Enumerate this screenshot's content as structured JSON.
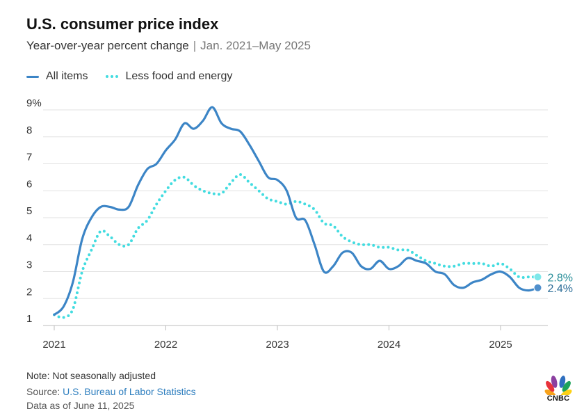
{
  "header": {
    "title": "U.S. consumer price index",
    "subtitle": "Year-over-year percent change",
    "subtitle_separator": "|",
    "subtitle_range": "Jan. 2021–May 2025"
  },
  "legend": {
    "items": [
      {
        "label": "All items",
        "style": "solid"
      },
      {
        "label": "Less food and energy",
        "style": "dotted"
      }
    ]
  },
  "footer": {
    "note": "Note: Not seasonally adjusted",
    "source_prefix": "Source: ",
    "source_link": "U.S. Bureau of Labor Statistics",
    "date": "Data as of June 11, 2025"
  },
  "logo": {
    "text": "CNBC",
    "icon": "peacock-icon"
  },
  "colors": {
    "all_items": "#3c85c6",
    "core": "#43dce0",
    "end_label_all": "#2f6f99",
    "end_label_core": "#2a8f9a",
    "grid": "#e2e2e2"
  },
  "chart_data": {
    "type": "line",
    "x_start": "2021-01",
    "x_frequency": "monthly",
    "ylim": [
      1,
      9
    ],
    "yticks": [
      1,
      2,
      3,
      4,
      5,
      6,
      7,
      8,
      9
    ],
    "ytick_labels": [
      "1",
      "2",
      "3",
      "4",
      "5",
      "6",
      "7",
      "8",
      "9%"
    ],
    "xticks": [
      {
        "label": "2021",
        "x": "2021-01"
      },
      {
        "label": "2022",
        "x": "2022-01"
      },
      {
        "label": "2023",
        "x": "2023-01"
      },
      {
        "label": "2024",
        "x": "2024-01"
      },
      {
        "label": "2025",
        "x": "2025-01"
      }
    ],
    "grid": true,
    "legend_position": "top-left",
    "series": [
      {
        "name": "All items",
        "style": "solid",
        "end_label": "2.4%",
        "values": [
          1.4,
          1.7,
          2.6,
          4.2,
          5.0,
          5.4,
          5.4,
          5.3,
          5.4,
          6.2,
          6.8,
          7.0,
          7.5,
          7.9,
          8.5,
          8.3,
          8.6,
          9.1,
          8.5,
          8.3,
          8.2,
          7.7,
          7.1,
          6.5,
          6.4,
          6.0,
          5.0,
          4.9,
          4.0,
          3.0,
          3.2,
          3.7,
          3.7,
          3.2,
          3.1,
          3.4,
          3.1,
          3.2,
          3.5,
          3.4,
          3.3,
          3.0,
          2.9,
          2.5,
          2.4,
          2.6,
          2.7,
          2.9,
          3.0,
          2.8,
          2.4,
          2.3,
          2.4
        ]
      },
      {
        "name": "Less food and energy",
        "style": "dotted",
        "end_label": "2.8%",
        "values": [
          1.4,
          1.3,
          1.6,
          3.0,
          3.8,
          4.5,
          4.3,
          4.0,
          4.0,
          4.6,
          4.9,
          5.5,
          6.0,
          6.4,
          6.5,
          6.2,
          6.0,
          5.9,
          5.9,
          6.3,
          6.6,
          6.3,
          6.0,
          5.7,
          5.6,
          5.5,
          5.6,
          5.5,
          5.3,
          4.8,
          4.7,
          4.3,
          4.1,
          4.0,
          4.0,
          3.9,
          3.9,
          3.8,
          3.8,
          3.6,
          3.4,
          3.3,
          3.2,
          3.2,
          3.3,
          3.3,
          3.3,
          3.2,
          3.3,
          3.1,
          2.8,
          2.8,
          2.8
        ]
      }
    ]
  }
}
